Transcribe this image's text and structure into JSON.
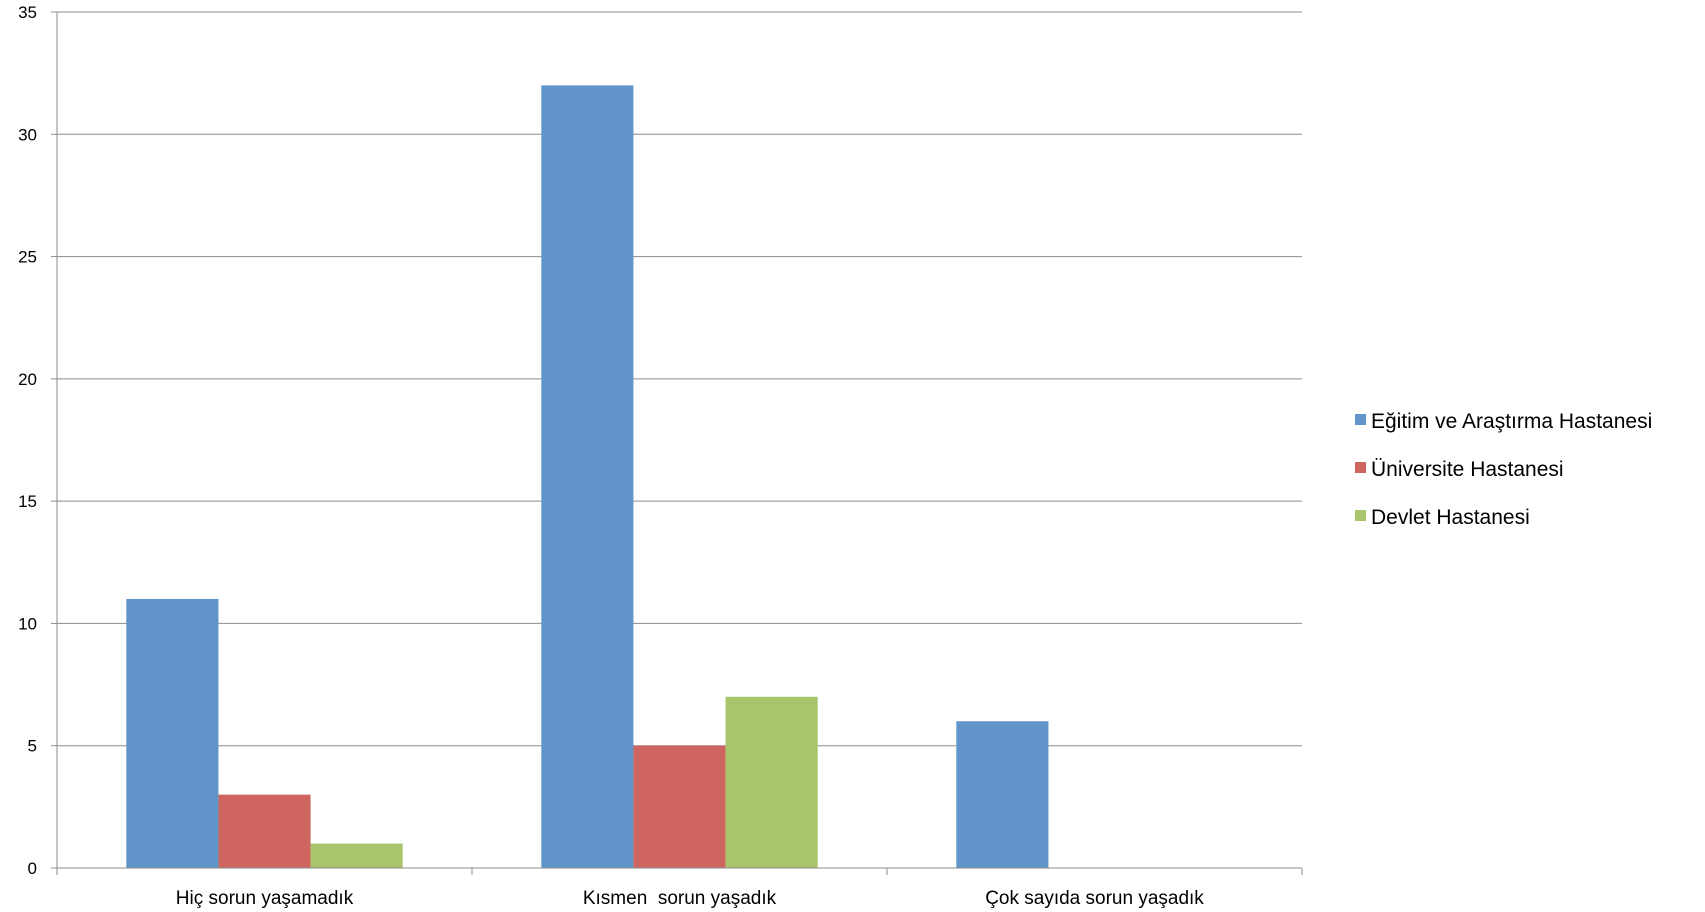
{
  "chart_data": {
    "type": "bar",
    "title": "",
    "xlabel": "",
    "ylabel": "",
    "ylim": [
      0,
      35
    ],
    "yticks": [
      0,
      5,
      10,
      15,
      20,
      25,
      30,
      35
    ],
    "grid": true,
    "legend_position": "right",
    "categories": [
      "Hiç sorun yaşamadık",
      "Kısmen  sorun yaşadık",
      "Çok sayıda sorun yaşadık"
    ],
    "series": [
      {
        "name": "Eğitim ve Araştırma Hastanesi",
        "color": "#6194C9",
        "values": [
          11,
          32,
          6
        ]
      },
      {
        "name": "Üniversite Hastanesi",
        "color": "#CE655E",
        "values": [
          3,
          5,
          0
        ]
      },
      {
        "name": "Devlet Hastanesi",
        "color": "#A9C56C",
        "values": [
          1,
          7,
          0
        ]
      }
    ]
  }
}
